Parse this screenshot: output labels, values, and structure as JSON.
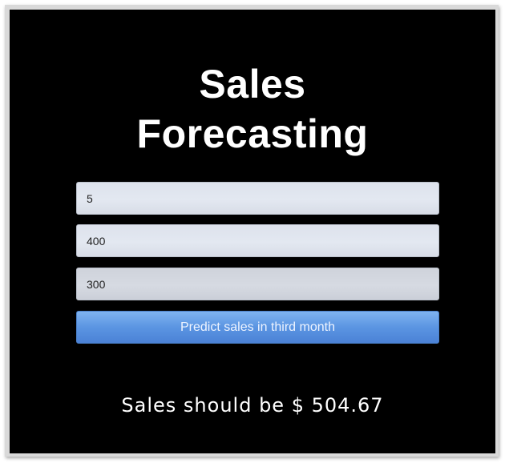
{
  "app": {
    "title_line1": "Sales",
    "title_line2": "Forecasting"
  },
  "form": {
    "fields": [
      {
        "value": "5"
      },
      {
        "value": "400"
      },
      {
        "value": "300"
      }
    ],
    "submit_label": "Predict sales in third month"
  },
  "result": {
    "text": "Sales should be $ 504.67"
  },
  "colors": {
    "background": "#000000",
    "button": "#5b95e2",
    "input": "#e3e8f1",
    "text": "#ffffff"
  }
}
